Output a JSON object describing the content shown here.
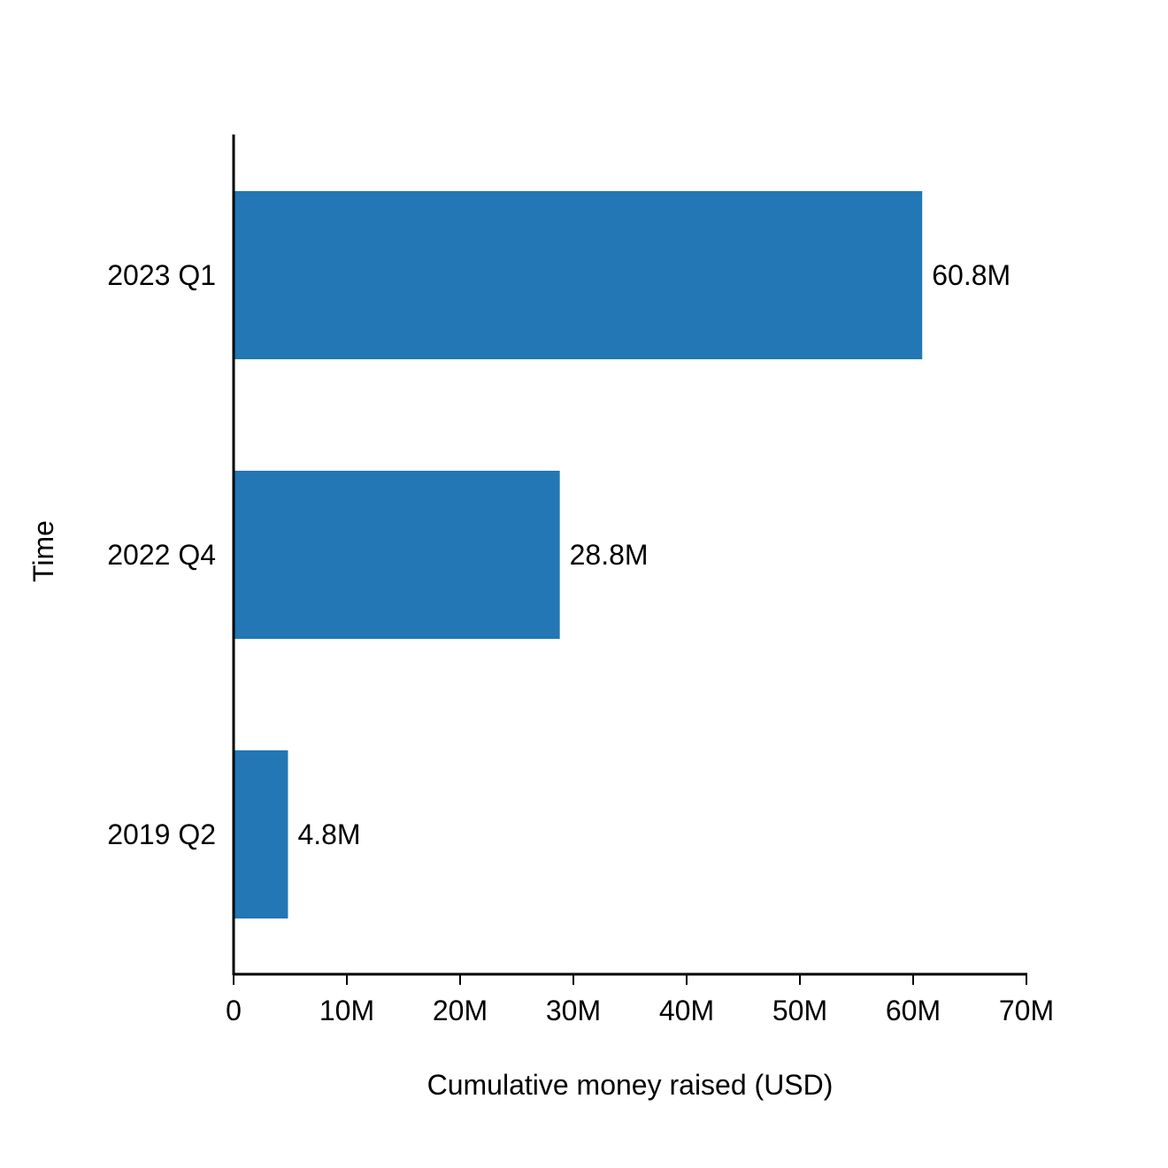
{
  "chart_data": {
    "type": "bar",
    "orientation": "horizontal",
    "title": "",
    "xlabel": "Cumulative money raised (USD)",
    "ylabel": "Time",
    "categories": [
      "2023 Q1",
      "2022 Q4",
      "2019 Q2"
    ],
    "values": [
      60800000,
      28800000,
      4800000
    ],
    "value_labels": [
      "60.8M",
      "28.8M",
      "4.8M"
    ],
    "xlim": [
      0,
      70000000
    ],
    "xticks": [
      0,
      10000000,
      20000000,
      30000000,
      40000000,
      50000000,
      60000000,
      70000000
    ],
    "xtick_labels": [
      "0",
      "10M",
      "20M",
      "30M",
      "40M",
      "50M",
      "60M",
      "70M"
    ],
    "grid": false,
    "bar_color": "#2277b4"
  }
}
